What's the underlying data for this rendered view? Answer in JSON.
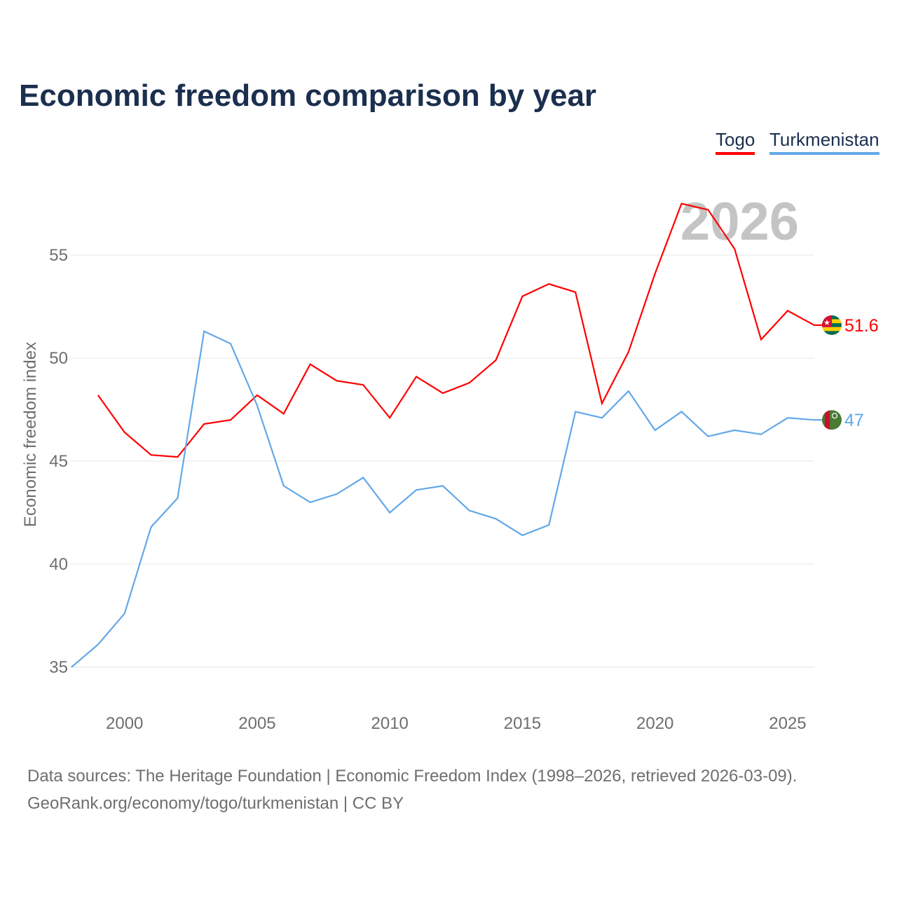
{
  "title": "Economic freedom comparison by year",
  "source_line1": "Data sources: The Heritage Foundation | Economic Freedom Index (1998–2026, retrieved 2026-03-09).",
  "source_line2": "GeoRank.org/economy/togo/turkmenistan | CC BY",
  "chart_data": {
    "type": "line",
    "title": "Economic freedom comparison by year",
    "xlabel": "",
    "ylabel": "Economic freedom index",
    "year_watermark": "2026",
    "xlim": [
      1998,
      2026
    ],
    "ylim": [
      33.5,
      58
    ],
    "xticks": [
      "2000",
      "2005",
      "2010",
      "2015",
      "2020",
      "2025"
    ],
    "yticks": [
      "35",
      "40",
      "45",
      "50",
      "55"
    ],
    "grid": true,
    "legend_placement": "top-right",
    "series": [
      {
        "name": "Togo",
        "color": "#ff0000",
        "end_label": "51.6",
        "flag": "togo-flag",
        "x": [
          1999,
          2000,
          2001,
          2002,
          2003,
          2004,
          2005,
          2006,
          2007,
          2008,
          2009,
          2010,
          2011,
          2012,
          2013,
          2014,
          2015,
          2016,
          2017,
          2018,
          2019,
          2020,
          2021,
          2022,
          2023,
          2024,
          2025,
          2026
        ],
        "values": [
          48.2,
          46.4,
          45.3,
          45.2,
          46.8,
          47.0,
          48.2,
          47.3,
          49.7,
          48.9,
          48.7,
          47.1,
          49.1,
          48.3,
          48.8,
          49.9,
          53.0,
          53.6,
          53.2,
          47.8,
          50.3,
          54.1,
          57.5,
          57.2,
          55.3,
          50.9,
          52.3,
          51.6
        ]
      },
      {
        "name": "Turkmenistan",
        "color": "#62a8e8",
        "end_label": "47",
        "flag": "turkmenistan-flag",
        "x": [
          1998,
          1999,
          2000,
          2001,
          2002,
          2003,
          2004,
          2005,
          2006,
          2007,
          2008,
          2009,
          2010,
          2011,
          2012,
          2013,
          2014,
          2015,
          2016,
          2017,
          2018,
          2019,
          2020,
          2021,
          2022,
          2023,
          2024,
          2025,
          2026
        ],
        "values": [
          35.0,
          36.1,
          37.6,
          41.8,
          43.2,
          51.3,
          50.7,
          47.7,
          43.8,
          43.0,
          43.4,
          44.2,
          42.5,
          43.6,
          43.8,
          42.6,
          42.2,
          41.4,
          41.9,
          47.4,
          47.1,
          48.4,
          46.5,
          47.4,
          46.2,
          46.5,
          46.3,
          47.1,
          47.0
        ]
      }
    ]
  }
}
